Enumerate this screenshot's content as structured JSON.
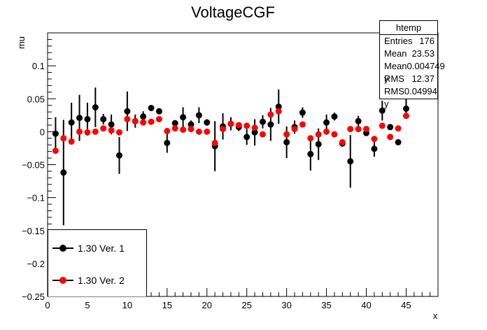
{
  "chart_data": {
    "type": "scatter",
    "title": "VoltageCGF",
    "xlabel": "x",
    "ylabel": "mu",
    "xlim": [
      0,
      49
    ],
    "ylim": [
      -0.25,
      0.15
    ],
    "x_ticks": [
      "0",
      "5",
      "10",
      "15",
      "20",
      "25",
      "30",
      "35",
      "40",
      "45"
    ],
    "y_ticks": [
      "-0.25",
      "-0.2",
      "-0.15",
      "-0.1",
      "-0.05",
      "0",
      "0.05",
      "0.1"
    ],
    "legend_position": "bottom-left",
    "series": [
      {
        "name": "1.30 Ver. 1",
        "color": "#000000",
        "x": [
          1,
          2,
          3,
          4,
          5,
          6,
          7,
          8,
          9,
          10,
          11,
          12,
          13,
          14,
          15,
          16,
          17,
          18,
          19,
          20,
          21,
          22,
          23,
          24,
          25,
          26,
          27,
          28,
          29,
          30,
          31,
          32,
          33,
          34,
          35,
          36,
          37,
          38,
          39,
          40,
          41,
          42,
          43,
          44,
          45
        ],
        "y": [
          -0.003,
          -0.062,
          0.014,
          0.021,
          0.019,
          0.037,
          0.019,
          0.011,
          -0.036,
          0.031,
          0.016,
          0.023,
          0.036,
          0.031,
          -0.017,
          0.013,
          0.022,
          0.011,
          0.025,
          0.014,
          -0.022,
          0.008,
          0.012,
          0.007,
          -0.008,
          -0.001,
          0.015,
          0.011,
          0.038,
          -0.016,
          0.007,
          0.029,
          -0.034,
          -0.019,
          0.014,
          0.023,
          -0.018,
          -0.045,
          0.016,
          -0.002,
          -0.026,
          0.032,
          0.007,
          -0.016,
          0.035
        ],
        "err": [
          0.025,
          0.08,
          0.03,
          0.035,
          0.025,
          0.03,
          0.008,
          0.015,
          0.028,
          0.03,
          0.01,
          0.008,
          0.004,
          0.004,
          0.015,
          0.004,
          0.015,
          0.006,
          0.012,
          0.005,
          0.038,
          0.02,
          0.01,
          0.006,
          0.012,
          0.02,
          0.01,
          0.025,
          0.026,
          0.024,
          0.01,
          0.008,
          0.025,
          0.024,
          0.012,
          0.006,
          0.004,
          0.04,
          0.008,
          0.004,
          0.012,
          0.015,
          0.004,
          0.003,
          0.015
        ]
      },
      {
        "name": "1.30 Ver. 2",
        "color": "#ff0000",
        "x": [
          1,
          2,
          3,
          4,
          5,
          6,
          7,
          8,
          9,
          10,
          11,
          12,
          13,
          14,
          15,
          16,
          17,
          18,
          19,
          20,
          21,
          22,
          23,
          24,
          25,
          26,
          27,
          28,
          29,
          30,
          31,
          32,
          33,
          34,
          35,
          36,
          37,
          38,
          39,
          40,
          41,
          42,
          43,
          44,
          45
        ],
        "y": [
          -0.029,
          -0.01,
          -0.015,
          0.0,
          -0.001,
          0.0,
          0.005,
          0.002,
          -0.001,
          0.019,
          0.016,
          0.014,
          0.015,
          0.019,
          0.001,
          0.005,
          0.003,
          0.004,
          0.0,
          0.0,
          -0.017,
          0.004,
          0.012,
          0.01,
          0.009,
          0.006,
          -0.004,
          0.026,
          0.031,
          -0.004,
          0.004,
          0.011,
          -0.01,
          -0.004,
          0.0,
          -0.004,
          -0.016,
          0.004,
          0.004,
          0.004,
          -0.011,
          0.009,
          -0.008,
          0.005,
          0.024
        ],
        "err": [
          0,
          0,
          0,
          0,
          0,
          0,
          0,
          0,
          0,
          0,
          0,
          0,
          0,
          0,
          0,
          0,
          0,
          0,
          0,
          0,
          0,
          0,
          0,
          0,
          0,
          0,
          0,
          0,
          0,
          0,
          0,
          0,
          0,
          0,
          0,
          0,
          0,
          0,
          0,
          0,
          0,
          0,
          0,
          0,
          0
        ]
      }
    ]
  },
  "stats_box": {
    "title": "htemp",
    "rows": [
      {
        "label": "Entries",
        "value": "176"
      },
      {
        "label": "Mean",
        "value": "23.53"
      },
      {
        "label": "Mean y",
        "value": "0.004749"
      },
      {
        "label": "RMS",
        "value": "12.37"
      },
      {
        "label": "RMS y",
        "value": "0.04994"
      }
    ]
  }
}
